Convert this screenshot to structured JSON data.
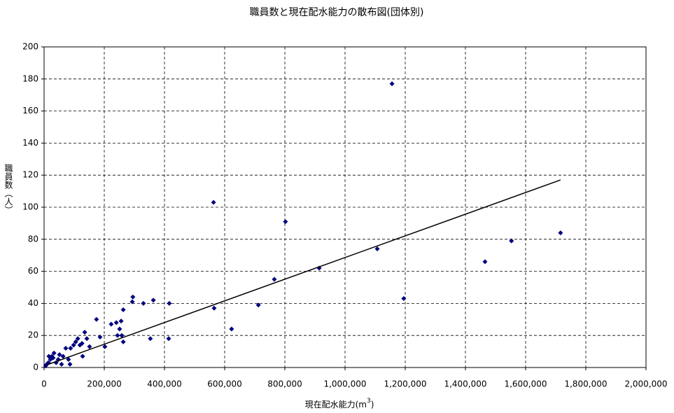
{
  "chart_data": {
    "type": "scatter",
    "title": "職員数と現在配水能力の散布図(団体別)",
    "x_label": {
      "text": "現在配水能力(m",
      "sup": "3",
      "end": ")"
    },
    "y_label": "職員数（人）",
    "xlim": [
      0,
      2000000
    ],
    "xticks": [
      0,
      {
        "value": 200000,
        "label": "200,000"
      },
      {
        "value": 400000,
        "label": "400,000"
      },
      {
        "value": 600000,
        "label": "600,000"
      },
      {
        "value": 800000,
        "label": "800,000"
      },
      {
        "value": 1000000,
        "label": "1,000,000"
      },
      {
        "value": 1200000,
        "label": "1,200,000"
      },
      {
        "value": 1400000,
        "label": "1,400,000"
      },
      {
        "value": 1600000,
        "label": "1,600,000"
      },
      {
        "value": 1800000,
        "label": "1,800,000"
      },
      {
        "value": 2000000,
        "label": "2,000,000"
      }
    ],
    "ylim": [
      0,
      200
    ],
    "yticks": [
      0,
      20,
      40,
      60,
      80,
      100,
      120,
      140,
      160,
      180,
      200
    ],
    "grid": true,
    "color": "#000080",
    "x": [
      1156000,
      563000,
      802000,
      1716000,
      1553000,
      1107000,
      1465000,
      914000,
      765000,
      1195000,
      712000,
      565000,
      623000,
      416000,
      414000,
      353000,
      363000,
      330000,
      295000,
      293000,
      263000,
      256000,
      251000,
      258000,
      263000,
      240000,
      223000,
      244000,
      174000,
      186000,
      202000,
      142000,
      135000,
      126000,
      119000,
      128000,
      151000,
      105000,
      98000,
      88000,
      81000,
      72000,
      63000,
      51000,
      47000,
      40000,
      33000,
      26000,
      21000,
      14000,
      9000,
      5000,
      16000,
      30000,
      58000,
      86000,
      112000
    ],
    "values": [
      177,
      103,
      91,
      84,
      79,
      74,
      66,
      62,
      55,
      43,
      39,
      37,
      24,
      40,
      18,
      18,
      42,
      40,
      44,
      41,
      36,
      29,
      24,
      20,
      16,
      28,
      27,
      20,
      30,
      19,
      13,
      18,
      22,
      15,
      14,
      7,
      13,
      16,
      14,
      12,
      5,
      12,
      7,
      8,
      5,
      3,
      9,
      7,
      5,
      3,
      2,
      1,
      7,
      6,
      2,
      2,
      18
    ],
    "trendline": {
      "x": [
        10000,
        1716000
      ],
      "y": [
        1.7,
        117
      ],
      "color": "#000000"
    }
  }
}
